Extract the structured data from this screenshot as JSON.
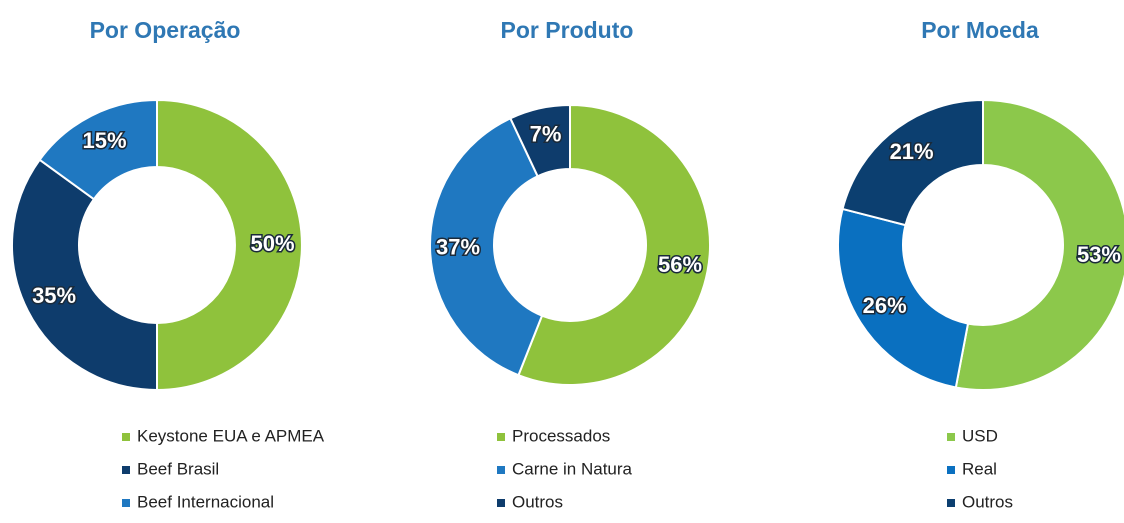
{
  "chart_data": [
    {
      "type": "donut",
      "title": "Por Operação",
      "categories": [
        "Keystone EUA e APMEA",
        "Beef Brasil",
        "Beef Internacional"
      ],
      "values": [
        50,
        35,
        15
      ],
      "value_labels": [
        "50%",
        "35%",
        "15%"
      ],
      "colors": [
        "#8fc23c",
        "#0e3c6c",
        "#1f78c1"
      ]
    },
    {
      "type": "donut",
      "title": "Por Produto",
      "categories": [
        "Processados",
        "Carne in Natura",
        "Outros"
      ],
      "values": [
        56,
        37,
        7
      ],
      "value_labels": [
        "56%",
        "37%",
        "7%"
      ],
      "colors": [
        "#8fc23c",
        "#1f78c1",
        "#0e3c6c"
      ]
    },
    {
      "type": "donut",
      "title": "Por Moeda",
      "categories": [
        "USD",
        "Real",
        "Outros"
      ],
      "values": [
        53,
        26,
        21
      ],
      "value_labels": [
        "53%",
        "26%",
        "21%"
      ],
      "colors": [
        "#8cc84b",
        "#0a70c0",
        "#0c3f70"
      ]
    }
  ]
}
